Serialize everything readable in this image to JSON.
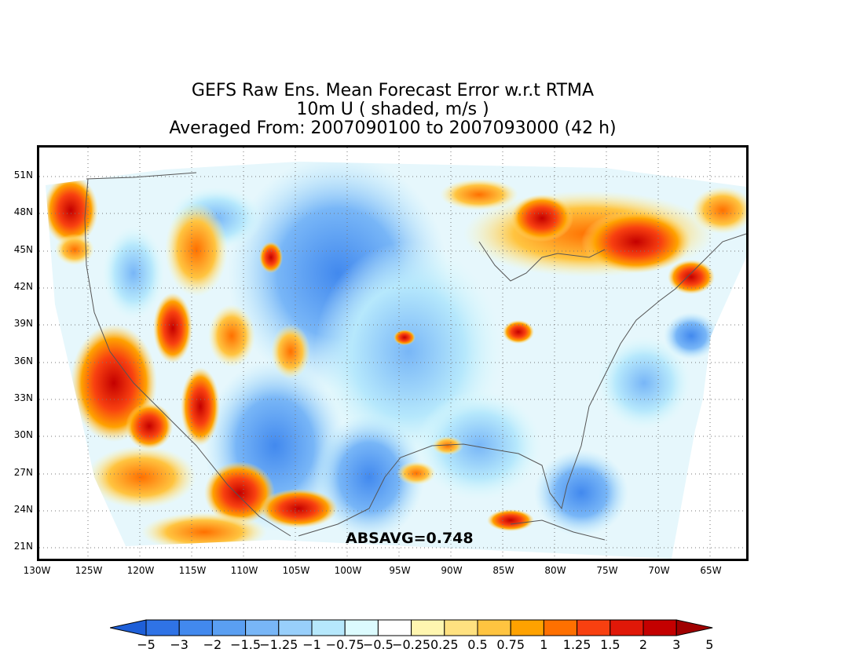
{
  "title": {
    "line1": "GEFS Raw Ens. Mean Forecast Error w.r.t RTMA",
    "line2": "10m U ( shaded, m/s )",
    "line3": "Averaged From: 2007090100 to 2007093000 (42 h)"
  },
  "map": {
    "lat_labels": [
      "51N",
      "48N",
      "45N",
      "42N",
      "39N",
      "36N",
      "33N",
      "30N",
      "27N",
      "24N",
      "21N"
    ],
    "lon_labels": [
      "130W",
      "125W",
      "120W",
      "115W",
      "110W",
      "105W",
      "100W",
      "95W",
      "90W",
      "85W",
      "80W",
      "75W",
      "70W",
      "65W"
    ],
    "absavg": "ABSAVG=0.748",
    "grid": "dotted"
  },
  "colorbar": {
    "labels": [
      "−5",
      "−3",
      "−2",
      "−1.5",
      "−1.25",
      "−1",
      "−0.75",
      "−0.5",
      "−0.25",
      "0.25",
      "0.5",
      "0.75",
      "1",
      "1.25",
      "1.5",
      "2",
      "3",
      "5"
    ],
    "colors": [
      "#1e5fd8",
      "#2f73e6",
      "#4289ee",
      "#5a9ff2",
      "#78b6f7",
      "#98cffb",
      "#b6e8fc",
      "#dcfbfe",
      "#ffffff",
      "#fff6b0",
      "#ffe180",
      "#ffc440",
      "#ffa200",
      "#ff7000",
      "#f84010",
      "#e01808",
      "#c40000",
      "#a00000"
    ]
  }
}
